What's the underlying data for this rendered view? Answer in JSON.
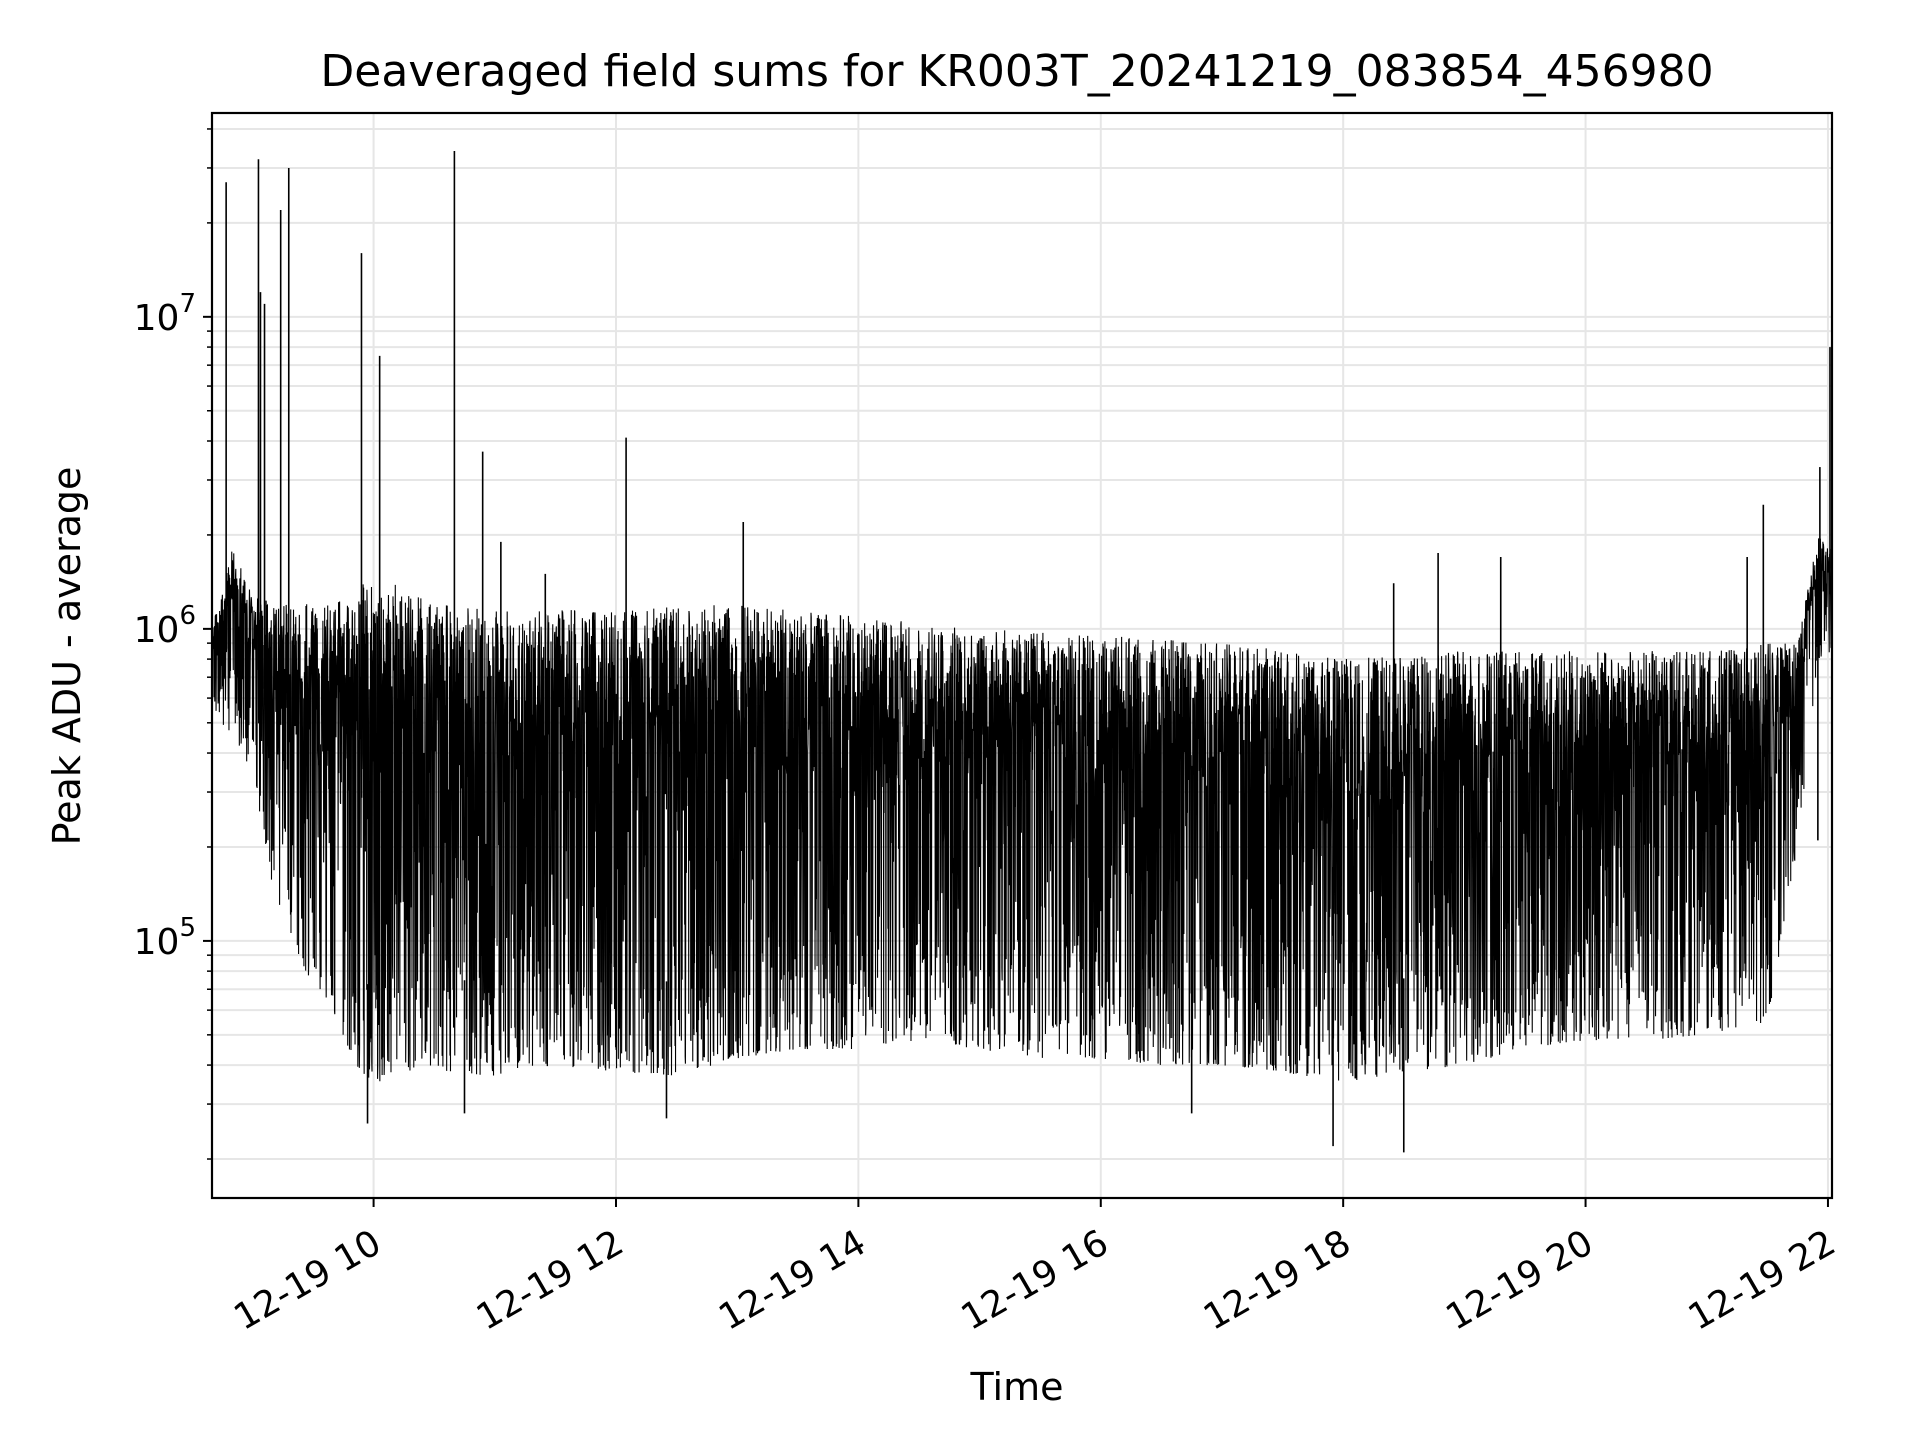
{
  "chart_data": {
    "type": "line",
    "title": "Deaveraged field sums for KR003T_20241219_083854_456980",
    "xlabel": "Time",
    "ylabel": "Peak ADU - average",
    "y_scale": "log",
    "grid": true,
    "grid_minor": true,
    "line_color": "#000000",
    "xlim": [
      "2024-12-19 08:40",
      "2024-12-19 22:02"
    ],
    "ylim": [
      15000,
      45000000
    ],
    "x_ticks": [
      {
        "value": "2024-12-19 10:00",
        "label": "12-19 10"
      },
      {
        "value": "2024-12-19 12:00",
        "label": "12-19 12"
      },
      {
        "value": "2024-12-19 14:00",
        "label": "12-19 14"
      },
      {
        "value": "2024-12-19 16:00",
        "label": "12-19 16"
      },
      {
        "value": "2024-12-19 18:00",
        "label": "12-19 18"
      },
      {
        "value": "2024-12-19 20:00",
        "label": "12-19 20"
      },
      {
        "value": "2024-12-19 22:00",
        "label": "12-19 22"
      }
    ],
    "y_ticks": [
      {
        "value": 100000,
        "base": "10",
        "exp": "5"
      },
      {
        "value": 1000000,
        "base": "10",
        "exp": "6"
      },
      {
        "value": 10000000,
        "base": "10",
        "exp": "7"
      }
    ],
    "series": [
      {
        "envelope": [
          {
            "x": "2024-12-19 08:40",
            "low": 550000,
            "high": 1000000
          },
          {
            "x": "2024-12-19 08:50",
            "low": 450000,
            "high": 1800000
          },
          {
            "x": "2024-12-19 09:00",
            "low": 350000,
            "high": 1300000
          },
          {
            "x": "2024-12-19 09:10",
            "low": 150000,
            "high": 1200000
          },
          {
            "x": "2024-12-19 09:20",
            "low": 100000,
            "high": 1200000
          },
          {
            "x": "2024-12-19 09:30",
            "low": 70000,
            "high": 1200000
          },
          {
            "x": "2024-12-19 09:40",
            "low": 60000,
            "high": 1200000
          },
          {
            "x": "2024-12-19 09:50",
            "low": 40000,
            "high": 1300000
          },
          {
            "x": "2024-12-19 10:00",
            "low": 35000,
            "high": 1500000
          },
          {
            "x": "2024-12-19 10:30",
            "low": 38000,
            "high": 1200000
          },
          {
            "x": "2024-12-19 11:00",
            "low": 37000,
            "high": 1150000
          },
          {
            "x": "2024-12-19 11:30",
            "low": 40000,
            "high": 1150000
          },
          {
            "x": "2024-12-19 12:00",
            "low": 38000,
            "high": 1150000
          },
          {
            "x": "2024-12-19 12:30",
            "low": 37000,
            "high": 1180000
          },
          {
            "x": "2024-12-19 13:00",
            "low": 42000,
            "high": 1200000
          },
          {
            "x": "2024-12-19 13:30",
            "low": 45000,
            "high": 1150000
          },
          {
            "x": "2024-12-19 14:00",
            "low": 45000,
            "high": 1100000
          },
          {
            "x": "2024-12-19 14:30",
            "low": 48000,
            "high": 1050000
          },
          {
            "x": "2024-12-19 15:00",
            "low": 45000,
            "high": 1000000
          },
          {
            "x": "2024-12-19 15:30",
            "low": 42000,
            "high": 980000
          },
          {
            "x": "2024-12-19 16:00",
            "low": 42000,
            "high": 950000
          },
          {
            "x": "2024-12-19 16:30",
            "low": 40000,
            "high": 930000
          },
          {
            "x": "2024-12-19 17:00",
            "low": 40000,
            "high": 900000
          },
          {
            "x": "2024-12-19 17:30",
            "low": 38000,
            "high": 870000
          },
          {
            "x": "2024-12-19 18:00",
            "low": 35000,
            "high": 800000
          },
          {
            "x": "2024-12-19 18:30",
            "low": 38000,
            "high": 820000
          },
          {
            "x": "2024-12-19 19:00",
            "low": 40000,
            "high": 850000
          },
          {
            "x": "2024-12-19 19:30",
            "low": 45000,
            "high": 850000
          },
          {
            "x": "2024-12-19 20:00",
            "low": 48000,
            "high": 850000
          },
          {
            "x": "2024-12-19 20:30",
            "low": 48000,
            "high": 850000
          },
          {
            "x": "2024-12-19 21:00",
            "low": 50000,
            "high": 850000
          },
          {
            "x": "2024-12-19 21:30",
            "low": 55000,
            "high": 900000
          },
          {
            "x": "2024-12-19 21:45",
            "low": 200000,
            "high": 900000
          },
          {
            "x": "2024-12-19 21:55",
            "low": 800000,
            "high": 2000000
          },
          {
            "x": "2024-12-19 22:02",
            "low": 850000,
            "high": 1800000
          }
        ],
        "spikes": [
          {
            "x": "2024-12-19 08:47",
            "y": 27000000
          },
          {
            "x": "2024-12-19 09:03",
            "y": 32000000
          },
          {
            "x": "2024-12-19 09:04",
            "y": 12000000
          },
          {
            "x": "2024-12-19 09:06",
            "y": 11000000
          },
          {
            "x": "2024-12-19 09:14",
            "y": 22000000
          },
          {
            "x": "2024-12-19 09:18",
            "y": 30000000
          },
          {
            "x": "2024-12-19 09:54",
            "y": 16000000
          },
          {
            "x": "2024-12-19 10:03",
            "y": 7500000
          },
          {
            "x": "2024-12-19 10:40",
            "y": 34000000
          },
          {
            "x": "2024-12-19 10:54",
            "y": 3700000
          },
          {
            "x": "2024-12-19 11:03",
            "y": 1900000
          },
          {
            "x": "2024-12-19 11:25",
            "y": 1500000
          },
          {
            "x": "2024-12-19 12:05",
            "y": 4100000
          },
          {
            "x": "2024-12-19 13:03",
            "y": 2200000
          },
          {
            "x": "2024-12-19 18:25",
            "y": 1400000
          },
          {
            "x": "2024-12-19 18:47",
            "y": 1750000
          },
          {
            "x": "2024-12-19 19:18",
            "y": 1700000
          },
          {
            "x": "2024-12-19 21:20",
            "y": 1700000
          },
          {
            "x": "2024-12-19 21:28",
            "y": 2500000
          },
          {
            "x": "2024-12-19 21:56",
            "y": 3300000
          },
          {
            "x": "2024-12-19 22:01",
            "y": 8000000
          }
        ],
        "dips": [
          {
            "x": "2024-12-19 09:57",
            "y": 26000.0
          },
          {
            "x": "2024-12-19 10:45",
            "y": 28000
          },
          {
            "x": "2024-12-19 12:25",
            "y": 27000
          },
          {
            "x": "2024-12-19 17:55",
            "y": 22000
          },
          {
            "x": "2024-12-19 18:30",
            "y": 21000
          },
          {
            "x": "2024-12-19 16:45",
            "y": 28000
          },
          {
            "x": "2024-12-19 21:55",
            "y": 210000
          }
        ]
      }
    ]
  }
}
